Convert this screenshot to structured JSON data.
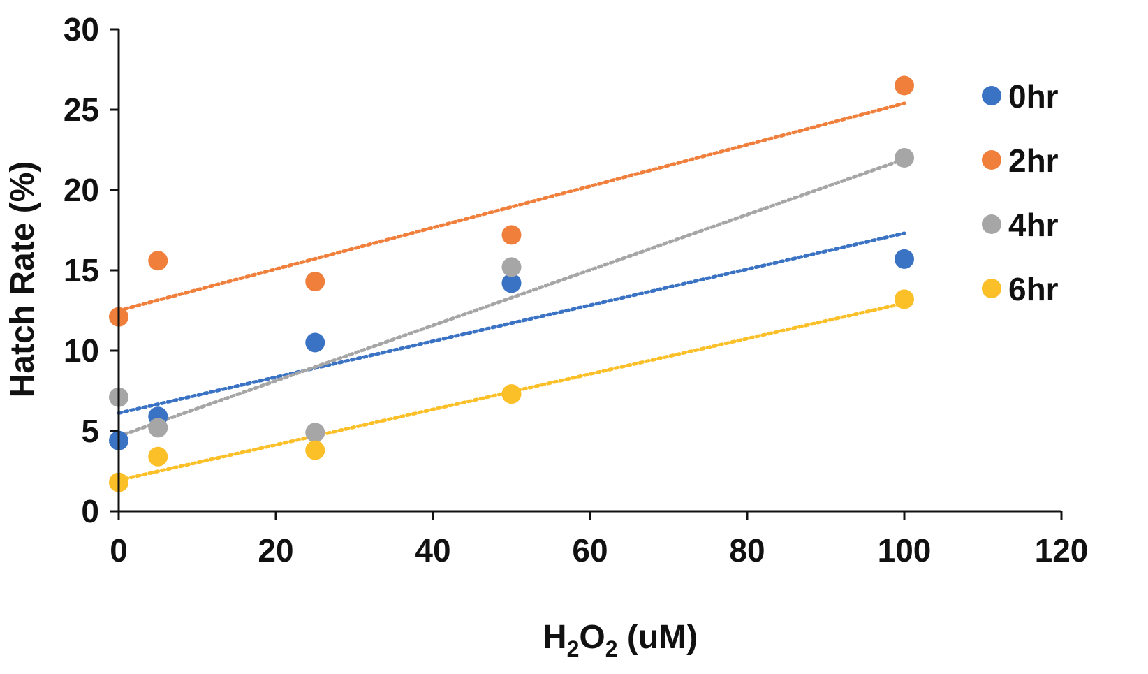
{
  "chart_data": {
    "type": "scatter",
    "title": "",
    "xlabel": {
      "base": "H",
      "sub1": "2",
      "mid": "O",
      "sub2": "2",
      "rest": " (uM)"
    },
    "ylabel": "Hatch Rate (%)",
    "xlim": [
      0,
      120
    ],
    "ylim": [
      0,
      30
    ],
    "xticks": [
      0,
      20,
      40,
      60,
      80,
      100,
      120
    ],
    "yticks": [
      0,
      5,
      10,
      15,
      20,
      25,
      30
    ],
    "grid": false,
    "legend_position": "right",
    "x": [
      0,
      5,
      25,
      50,
      100
    ],
    "series": [
      {
        "name": "0hr",
        "color": "#3a72c4",
        "values": [
          4.4,
          5.9,
          10.5,
          14.2,
          15.7
        ],
        "trendline": "linear"
      },
      {
        "name": "2hr",
        "color": "#f07f3c",
        "values": [
          12.1,
          15.6,
          14.3,
          17.2,
          26.5
        ],
        "trendline": "linear"
      },
      {
        "name": "4hr",
        "color": "#a6a6a6",
        "values": [
          7.1,
          5.2,
          4.9,
          15.2,
          22.0
        ],
        "trendline": "linear"
      },
      {
        "name": "6hr",
        "color": "#fbbf28",
        "values": [
          1.8,
          3.4,
          3.8,
          7.3,
          13.2
        ],
        "trendline": "linear"
      }
    ]
  }
}
